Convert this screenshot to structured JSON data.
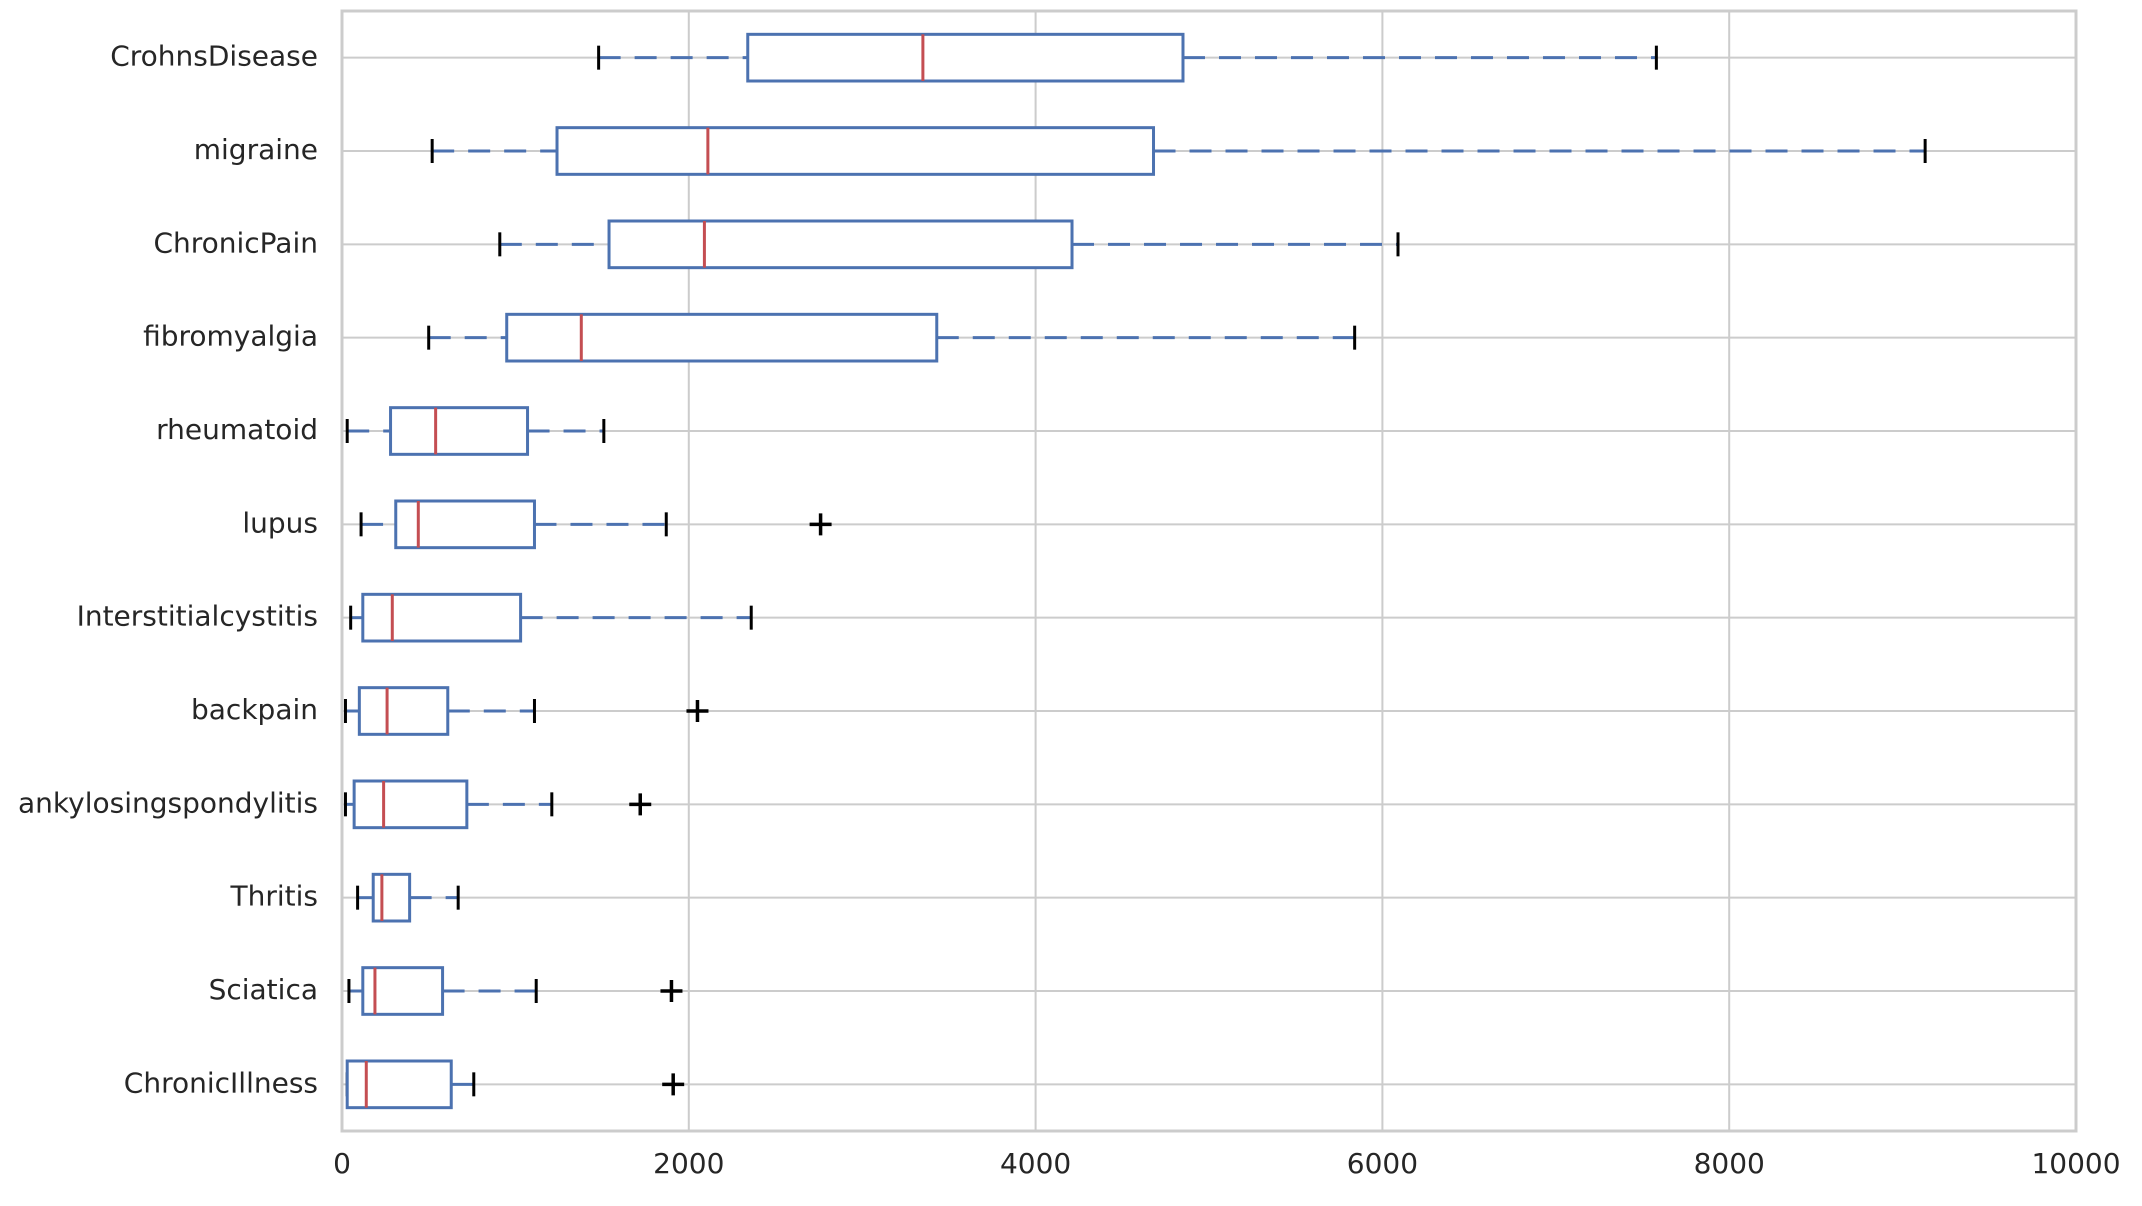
{
  "chart_data": {
    "type": "boxplot",
    "orientation": "horizontal",
    "categories": [
      "CrohnsDisease",
      "migraine",
      "ChronicPain",
      "fibromyalgia",
      "rheumatoid",
      "lupus",
      "Interstitialcystitis",
      "backpain",
      "ankylosingspondylitis",
      "Thritis",
      "Sciatica",
      "ChronicIllness"
    ],
    "whislo": [
      1480,
      520,
      910,
      500,
      30,
      110,
      50,
      20,
      20,
      90,
      40,
      30
    ],
    "q1": [
      2340,
      1240,
      1540,
      950,
      280,
      310,
      120,
      100,
      70,
      180,
      120,
      30
    ],
    "med": [
      3350,
      2110,
      2090,
      1380,
      540,
      440,
      290,
      260,
      240,
      230,
      190,
      140
    ],
    "q3": [
      4850,
      4680,
      4210,
      3430,
      1070,
      1110,
      1030,
      610,
      720,
      390,
      580,
      630
    ],
    "whishi": [
      7580,
      9130,
      6090,
      5840,
      1510,
      1870,
      2360,
      1110,
      1210,
      670,
      1120,
      760
    ],
    "fliers": [
      [],
      [],
      [],
      [],
      [],
      [
        2760
      ],
      [],
      [
        2050
      ],
      [
        1720
      ],
      [],
      [
        1900
      ],
      [
        1910
      ]
    ],
    "box_color": "#4c72b0",
    "median_color": "#c44e52",
    "flier_color": "#000000",
    "xlim": [
      0,
      10000
    ],
    "xticks": [
      0,
      2000,
      4000,
      6000,
      8000,
      10000
    ],
    "grid": true
  }
}
